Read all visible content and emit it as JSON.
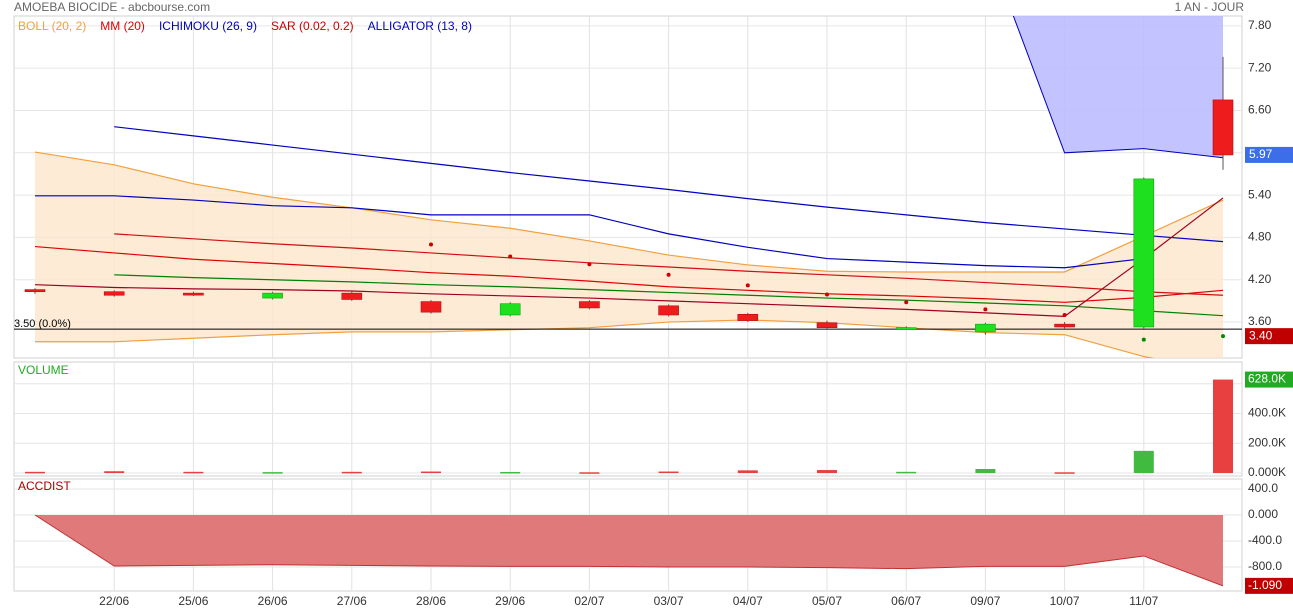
{
  "header": {
    "title": "AMOEBA BIOCIDE - abcbourse.com",
    "period": "1 AN - JOUR"
  },
  "chart_data": [
    {
      "type": "candlestick",
      "categories": [
        null,
        "22/06",
        "25/06",
        "26/06",
        "27/06",
        "28/06",
        "29/06",
        "02/07",
        "03/07",
        "04/07",
        "05/07",
        "06/07",
        "09/07",
        "10/07",
        "11/07",
        null
      ],
      "open": [
        4.06,
        4.03,
        4.01,
        3.94,
        4.01,
        3.89,
        3.7,
        3.89,
        3.83,
        3.71,
        3.59,
        3.51,
        3.46,
        3.57,
        3.53,
        6.75
      ],
      "high": [
        4.08,
        4.05,
        4.03,
        4.03,
        4.03,
        3.91,
        3.88,
        3.91,
        3.85,
        3.73,
        3.62,
        3.54,
        3.59,
        3.6,
        5.65,
        7.36
      ],
      "low": [
        4.0,
        3.96,
        3.97,
        3.92,
        3.9,
        3.72,
        3.68,
        3.78,
        3.68,
        3.6,
        3.5,
        3.49,
        3.42,
        3.51,
        3.51,
        5.76
      ],
      "close": [
        4.03,
        3.98,
        3.99,
        4.01,
        3.92,
        3.74,
        3.86,
        3.8,
        3.7,
        3.62,
        3.52,
        3.52,
        3.57,
        3.53,
        5.63,
        5.97
      ],
      "up_color": "#1ee01e",
      "down_color": "#ee1c1c",
      "ylim": [
        3.09,
        7.94
      ],
      "yticks": [
        {
          "value": 3.6,
          "label": "3.60"
        },
        {
          "value": 4.2,
          "label": "4.20"
        },
        {
          "value": 4.8,
          "label": "4.80"
        },
        {
          "value": 5.4,
          "label": "5.40"
        },
        {
          "value": 6.0,
          "label": "6.00"
        },
        {
          "value": 6.6,
          "label": "6.60"
        },
        {
          "value": 7.2,
          "label": "7.20"
        },
        {
          "value": 7.8,
          "label": "7.80"
        }
      ],
      "grid": true,
      "reference": {
        "value": 3.5,
        "label": "3.50  (0.0%)"
      },
      "sar_label": {
        "value": 3.4,
        "label": "3.40"
      },
      "indicators": [
        {
          "name": "BOLL (20, 2)",
          "color": "#f0a040",
          "fill": "#fde6cc",
          "lines": [
            {
              "color": "#f0a040",
              "values": [
                6.01,
                5.83,
                5.56,
                5.37,
                5.22,
                5.05,
                4.93,
                4.75,
                4.55,
                4.41,
                4.32,
                4.31,
                4.31,
                4.31,
                4.82,
                5.33
              ]
            },
            {
              "color": "#f0a040",
              "values": [
                3.32,
                3.32,
                3.37,
                3.42,
                3.46,
                3.46,
                3.49,
                3.52,
                3.6,
                3.63,
                3.59,
                3.52,
                3.45,
                3.42,
                3.11,
                2.9
              ]
            }
          ]
        },
        {
          "name": "MM (20)",
          "color": "#e00000",
          "lines": [
            {
              "color": "#e00000",
              "values": [
                4.67,
                4.58,
                4.49,
                4.43,
                4.37,
                4.3,
                4.25,
                4.18,
                4.1,
                4.05,
                4.0,
                3.97,
                3.93,
                3.88,
                3.95,
                4.05
              ]
            }
          ]
        },
        {
          "name": "ICHIMOKU (26, 9)",
          "color": "#0000c0",
          "cloud": {
            "fill": "#b8b8ff",
            "upper": [
              null,
              null,
              null,
              null,
              null,
              null,
              null,
              null,
              null,
              null,
              null,
              null,
              9.0,
              9.0,
              9.0,
              9.0
            ],
            "lower": [
              null,
              null,
              null,
              null,
              null,
              null,
              null,
              null,
              null,
              null,
              null,
              null,
              9.0,
              6.0,
              6.06,
              5.93
            ]
          },
          "lines": [
            {
              "color": "#0000c0",
              "values": [
                5.39,
                5.39,
                5.33,
                5.25,
                5.22,
                5.12,
                5.12,
                5.12,
                4.85,
                4.66,
                4.5,
                4.45,
                4.4,
                4.37,
                4.5,
                null
              ]
            },
            {
              "color": "#0000c0",
              "values": [
                null,
                6.37,
                6.24,
                6.11,
                5.98,
                5.85,
                5.72,
                5.6,
                5.48,
                5.35,
                5.23,
                5.12,
                5.01,
                4.92,
                4.83,
                4.74
              ]
            }
          ]
        },
        {
          "name": "SAR (0.02, 0.2)",
          "color": "#cc0000",
          "color_below": "#008800",
          "points": [
            null,
            null,
            null,
            null,
            null,
            4.7,
            4.53,
            4.42,
            4.27,
            4.12,
            3.99,
            3.88,
            3.78,
            3.7,
            3.35,
            3.4
          ]
        },
        {
          "name": "ALLIGATOR (13, 8)",
          "color": "#0000c0",
          "lines": [
            {
              "color": "#008000",
              "values": [
                null,
                4.27,
                4.23,
                4.2,
                4.17,
                4.13,
                4.1,
                4.06,
                4.02,
                3.98,
                3.94,
                3.91,
                3.87,
                3.83,
                3.76,
                3.69
              ]
            },
            {
              "color": "#d01010",
              "values": [
                null,
                4.85,
                4.78,
                4.71,
                4.65,
                4.58,
                4.51,
                4.44,
                4.38,
                4.32,
                4.27,
                4.22,
                4.16,
                4.1,
                4.03,
                3.98
              ]
            },
            {
              "color": "#a00020",
              "values": [
                4.13,
                4.09,
                4.07,
                4.06,
                4.04,
                4.0,
                3.97,
                3.94,
                3.9,
                3.86,
                3.82,
                3.78,
                3.73,
                3.68,
                4.5,
                5.36
              ]
            }
          ]
        }
      ]
    },
    {
      "type": "bar",
      "title": "VOLUME",
      "title_color": "#22aa22",
      "values": [
        8,
        12,
        8,
        6,
        8,
        10,
        7,
        5,
        10,
        18,
        20,
        8,
        27,
        5,
        149,
        628
      ],
      "up_color": "#40bb40",
      "down_color": "#e84040",
      "last_label": {
        "value": 628,
        "label": "628.0K"
      },
      "label_color": "#22aa22",
      "ylim": [
        -20,
        746
      ],
      "yticks": [
        {
          "value": 0,
          "label": "0.000K"
        },
        {
          "value": 200,
          "label": "200.0K"
        },
        {
          "value": 400,
          "label": "400.0K"
        },
        {
          "value": 600,
          "label": "600.0K"
        }
      ],
      "grid": true
    },
    {
      "type": "area",
      "title": "ACCDIST",
      "title_color": "#aa0000",
      "values": [
        0,
        -785,
        -775,
        -765,
        -775,
        -785,
        -790,
        -790,
        -800,
        -800,
        -810,
        -825,
        -790,
        -790,
        -630,
        -1090
      ],
      "color": "#e07a7a",
      "line_color": "#c03030",
      "last_label": {
        "value": -1090,
        "label": "-1.090"
      },
      "label_color": "#c00000",
      "ylim": [
        -1169,
        554
      ],
      "yticks": [
        {
          "value": 400,
          "label": "400.0"
        },
        {
          "value": 0,
          "label": "0.000"
        },
        {
          "value": -400,
          "label": "-400.0"
        },
        {
          "value": -800,
          "label": "-800.0"
        }
      ],
      "grid": true
    }
  ]
}
